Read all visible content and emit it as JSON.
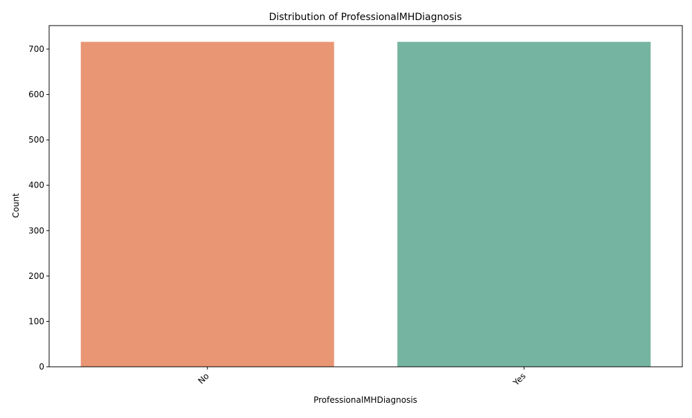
{
  "chart_data": {
    "type": "bar",
    "title": "Distribution of ProfessionalMHDiagnosis",
    "xlabel": "ProfessionalMHDiagnosis",
    "ylabel": "Count",
    "categories": [
      "No",
      "Yes"
    ],
    "values": [
      716,
      716
    ],
    "colors": [
      "#e99675",
      "#75b4a0"
    ],
    "ylim": [
      0,
      751.8
    ],
    "yticks": [
      0,
      100,
      200,
      300,
      400,
      500,
      600,
      700
    ],
    "grid": false,
    "legend": "none",
    "x_tick_rotation": 45
  }
}
